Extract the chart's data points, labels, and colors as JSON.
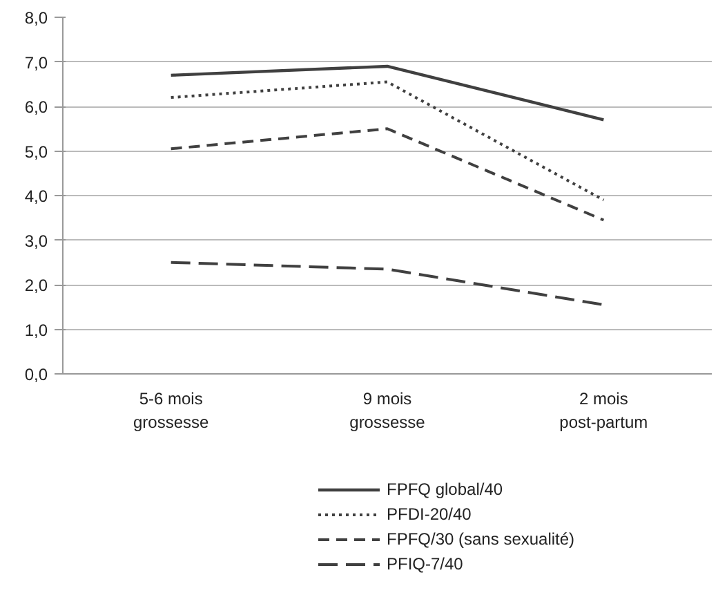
{
  "chart_data": {
    "type": "line",
    "categories": [
      "5-6 mois grossesse",
      "9 mois grossesse",
      "2 mois post-partum"
    ],
    "series": [
      {
        "name": "FPFQ global/40",
        "color": "#404040",
        "line_style": "solid",
        "values": [
          6.7,
          6.9,
          5.7
        ]
      },
      {
        "name": "PFDI-20/40",
        "color": "#404040",
        "line_style": "dotted",
        "values": [
          6.2,
          6.55,
          3.9
        ]
      },
      {
        "name": "FPFQ/30 (sans sexualité)",
        "color": "#404040",
        "line_style": "dashed",
        "values": [
          5.05,
          5.5,
          3.45
        ]
      },
      {
        "name": "PFIQ-7/40",
        "color": "#404040",
        "line_style": "dashed",
        "values": [
          2.5,
          2.35,
          1.55
        ]
      }
    ],
    "ylim": [
      0,
      8
    ],
    "yticks": [
      {
        "value": 0,
        "label": "0,0"
      },
      {
        "value": 1,
        "label": "1,0"
      },
      {
        "value": 2,
        "label": "2,0"
      },
      {
        "value": 3,
        "label": "3,0"
      },
      {
        "value": 4,
        "label": "4,0"
      },
      {
        "value": 5,
        "label": "5,0"
      },
      {
        "value": 6,
        "label": "6,0"
      },
      {
        "value": 7,
        "label": "7,0"
      },
      {
        "value": 8,
        "label": "8,0"
      }
    ],
    "grid": "y",
    "legend": "bottom",
    "marker": "none"
  }
}
